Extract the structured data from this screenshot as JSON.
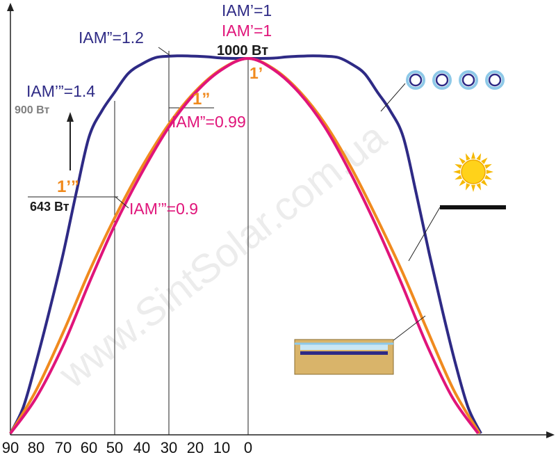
{
  "chart_data": {
    "type": "line",
    "title": "",
    "xlabel": "",
    "ylabel": "",
    "x_ticks": [
      "90",
      "80",
      "70",
      "60",
      "50",
      "40",
      "30",
      "20",
      "10",
      "0"
    ],
    "series": [
      {
        "id": "vacuum_tube",
        "color": "#2e2a85",
        "points": [
          [
            90,
            0
          ],
          [
            85,
            70
          ],
          [
            80,
            190
          ],
          [
            75,
            330
          ],
          [
            70,
            480
          ],
          [
            65,
            640
          ],
          [
            60,
            790
          ],
          [
            55,
            860
          ],
          [
            50,
            910
          ],
          [
            45,
            960
          ],
          [
            40,
            985
          ],
          [
            35,
            1002
          ],
          [
            30,
            1006
          ],
          [
            25,
            1007
          ],
          [
            20,
            1006
          ],
          [
            15,
            1004
          ],
          [
            10,
            1001
          ],
          [
            5,
            1000
          ],
          [
            0,
            1000
          ]
        ]
      },
      {
        "id": "flat_plate_glass",
        "color": "#f08a1e",
        "points": [
          [
            90,
            0
          ],
          [
            80,
            115
          ],
          [
            70,
            270
          ],
          [
            60,
            430
          ],
          [
            50,
            575
          ],
          [
            40,
            710
          ],
          [
            30,
            825
          ],
          [
            20,
            912
          ],
          [
            10,
            972
          ],
          [
            0,
            1000
          ]
        ]
      },
      {
        "id": "flat_absorber",
        "color": "#e0147a",
        "points": [
          [
            90,
            0
          ],
          [
            80,
            95
          ],
          [
            70,
            235
          ],
          [
            60,
            400
          ],
          [
            50,
            555
          ],
          [
            40,
            695
          ],
          [
            30,
            817
          ],
          [
            20,
            908
          ],
          [
            10,
            970
          ],
          [
            0,
            1000
          ]
        ]
      }
    ],
    "annotations": {
      "iam1_top": "IAM’=1",
      "iam1_pink": "IAM’=1",
      "iam2_tube": "IAM”=1.2",
      "iam3_tube": "IAM’”=1.4",
      "iam2_flat": "IAM”=0.99",
      "iam3_flat": "IAM’”=0.9",
      "w1000": "1000 Вт",
      "w900": "900 Вт",
      "w643": "643 Вт",
      "pt1": "1’",
      "pt2": "1”",
      "pt3": "1’”"
    },
    "watermark": "www.SintSolar.com.ua"
  },
  "colors": {
    "vacuum": "#2e2a85",
    "orange": "#f08a1e",
    "pink": "#e0147a",
    "sun": "#ffd21a",
    "sun_ray": "#f5b800",
    "tube_ring": "#8ec9e8",
    "box_fill": "#d9b46a",
    "glass": "#c9e7f5",
    "watermark": "#ececec",
    "grey_text": "#7f7f7f"
  }
}
